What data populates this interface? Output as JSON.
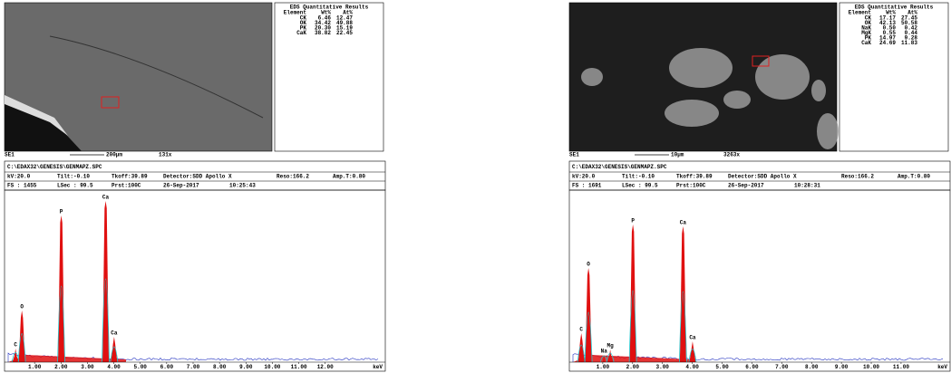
{
  "panels": [
    {
      "image": {
        "detector": "SE1",
        "scale_bar": "200µm",
        "magnification": "131x"
      },
      "results": {
        "title": "EDS Quantitative Results",
        "header": [
          "Element",
          "Wt%",
          "At%"
        ],
        "rows": [
          [
            "CK",
            "6.46",
            "12.47"
          ],
          [
            "OK",
            "34.42",
            "49.88"
          ],
          [
            "PK",
            "20.30",
            "15.19"
          ],
          [
            "CaK",
            "38.82",
            "22.45"
          ]
        ]
      },
      "file": "C:\\EDAX32\\GENESIS\\GENMAPZ.SPC",
      "info1": [
        "kV:20.0",
        "Tilt:-0.10",
        "Tkoff:39.89",
        "Detector:SDD Apollo X",
        "Reso:166.2",
        "Amp.T:0.80"
      ],
      "info2": [
        "FS : 1455",
        "LSec : 99.5",
        "Prst:100C",
        "26-Sep-2017",
        "10:25:43"
      ],
      "chart_data": {
        "type": "spectrum",
        "x_unit": "keV",
        "xlim": [
          0,
          14
        ],
        "xticks": [
          {
            "value": 1,
            "label": "1.00"
          },
          {
            "value": 2,
            "label": "2.00"
          },
          {
            "value": 3,
            "label": "3.00"
          },
          {
            "value": 4,
            "label": "4.00"
          },
          {
            "value": 5,
            "label": "5.00"
          },
          {
            "value": 6,
            "label": "6.00"
          },
          {
            "value": 7,
            "label": "7.00"
          },
          {
            "value": 8,
            "label": "8.00"
          },
          {
            "value": 9,
            "label": "9.00"
          },
          {
            "value": 10,
            "label": "10.00"
          },
          {
            "value": 11,
            "label": "11.00"
          },
          {
            "value": 12,
            "label": "12.00"
          }
        ],
        "peaks": [
          {
            "label": "C",
            "energy": 0.28,
            "height": 15
          },
          {
            "label": "O",
            "energy": 0.52,
            "height": 57
          },
          {
            "label": "P",
            "energy": 2.01,
            "height": 162
          },
          {
            "label": "Ca",
            "energy": 3.69,
            "height": 178
          },
          {
            "label": "Ca",
            "energy": 4.01,
            "height": 28
          }
        ]
      }
    },
    {
      "image": {
        "detector": "SE1",
        "scale_bar": "10µm",
        "magnification": "3263x"
      },
      "results": {
        "title": "EDS Quantitative Results",
        "header": [
          "Element",
          "Wt%",
          "At%"
        ],
        "rows": [
          [
            "CK",
            "17.17",
            "27.45"
          ],
          [
            "OK",
            "42.13",
            "50.58"
          ],
          [
            "NaK",
            "0.50",
            "0.42"
          ],
          [
            "MgK",
            "0.55",
            "0.44"
          ],
          [
            "PK",
            "14.97",
            "9.28"
          ],
          [
            "CaK",
            "24.69",
            "11.83"
          ]
        ]
      },
      "file": "C:\\EDAX32\\GENESIS\\GENMAPZ.SPC",
      "info1": [
        "kV:20.0",
        "Tilt:-0.10",
        "Tkoff:39.89",
        "Detector:SDD Apollo X",
        "Reso:166.2",
        "Amp.T:0.80"
      ],
      "info2": [
        "FS : 1691",
        "LSec : 99.5",
        "Prst:100C",
        "26-Sep-2017",
        "10:28:31"
      ],
      "chart_data": {
        "type": "spectrum",
        "x_unit": "keV",
        "xlim": [
          0,
          12.4
        ],
        "xticks": [
          {
            "value": 1,
            "label": "1.00"
          },
          {
            "value": 2,
            "label": "2.00"
          },
          {
            "value": 3,
            "label": "3.00"
          },
          {
            "value": 4,
            "label": "4.00"
          },
          {
            "value": 5,
            "label": "5.00"
          },
          {
            "value": 6,
            "label": "6.00"
          },
          {
            "value": 7,
            "label": "7.00"
          },
          {
            "value": 8,
            "label": "8.00"
          },
          {
            "value": 9,
            "label": "9.00"
          },
          {
            "value": 10,
            "label": "10.00"
          },
          {
            "value": 11,
            "label": "11.00"
          }
        ],
        "peaks": [
          {
            "label": "C",
            "energy": 0.28,
            "height": 32
          },
          {
            "label": "O",
            "energy": 0.52,
            "height": 104
          },
          {
            "label": "Na",
            "energy": 1.04,
            "height": 8
          },
          {
            "label": "Mg",
            "energy": 1.25,
            "height": 14
          },
          {
            "label": "P",
            "energy": 2.01,
            "height": 152
          },
          {
            "label": "Ca",
            "energy": 3.69,
            "height": 150
          },
          {
            "label": "Ca",
            "energy": 4.01,
            "height": 23
          }
        ]
      }
    }
  ]
}
